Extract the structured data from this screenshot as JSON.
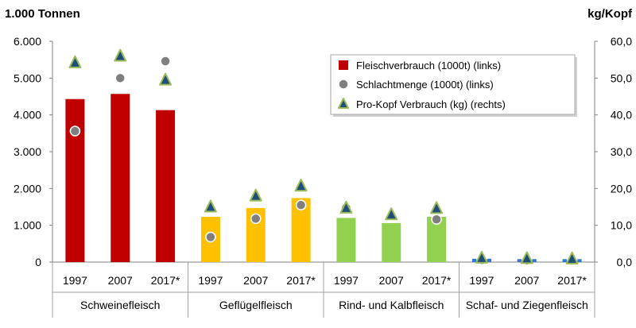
{
  "chart_data": {
    "type": "bar",
    "left_axis_title": "1.000 Tonnen",
    "right_axis_title": "kg/Kopf",
    "left_ticks": [
      "0",
      "1.000",
      "2.000",
      "3.000",
      "4.000",
      "5.000",
      "6.000"
    ],
    "right_ticks": [
      "0,0",
      "10,0",
      "20,0",
      "30,0",
      "40,0",
      "50,0",
      "60,0"
    ],
    "ylim_left": [
      0,
      6000
    ],
    "ylim_right": [
      0,
      60
    ],
    "groups": [
      {
        "label": "Schweinefleisch",
        "color": "#c00000"
      },
      {
        "label": "Geflügelfleisch",
        "color": "#ffc000"
      },
      {
        "label": "Rind- und Kalbfleisch",
        "color": "#92d050"
      },
      {
        "label": "Schaf- und Ziegenfleisch",
        "color": "#2e75d6"
      }
    ],
    "years": [
      "1997",
      "2007",
      "2017*"
    ],
    "series": [
      {
        "name": "Fleischverbrauch (1000t) (links)",
        "axis": "left",
        "values": [
          4430,
          4570,
          4130,
          1230,
          1470,
          1740,
          1200,
          1060,
          1230,
          90,
          80,
          80
        ]
      },
      {
        "name": "Schlachtmenge (1000t) (links)",
        "axis": "left",
        "values": [
          3560,
          5000,
          5460,
          680,
          1180,
          1550,
          1470,
          1260,
          1160,
          60,
          50,
          50
        ]
      },
      {
        "name": "Pro-Kopf Verbrauch (kg) (rechts)",
        "axis": "right",
        "values": [
          54.2,
          56.0,
          49.5,
          15.0,
          18.0,
          20.7,
          14.7,
          12.9,
          14.6,
          1.1,
          1.0,
          0.9
        ]
      }
    ],
    "legend_position": "top-right",
    "legend_colors": {
      "bar": "#c00000",
      "dot": "#7f7f7f",
      "triangle_fill": "#1f4e79",
      "triangle_stroke": "#9bbb59"
    },
    "grid": false
  }
}
